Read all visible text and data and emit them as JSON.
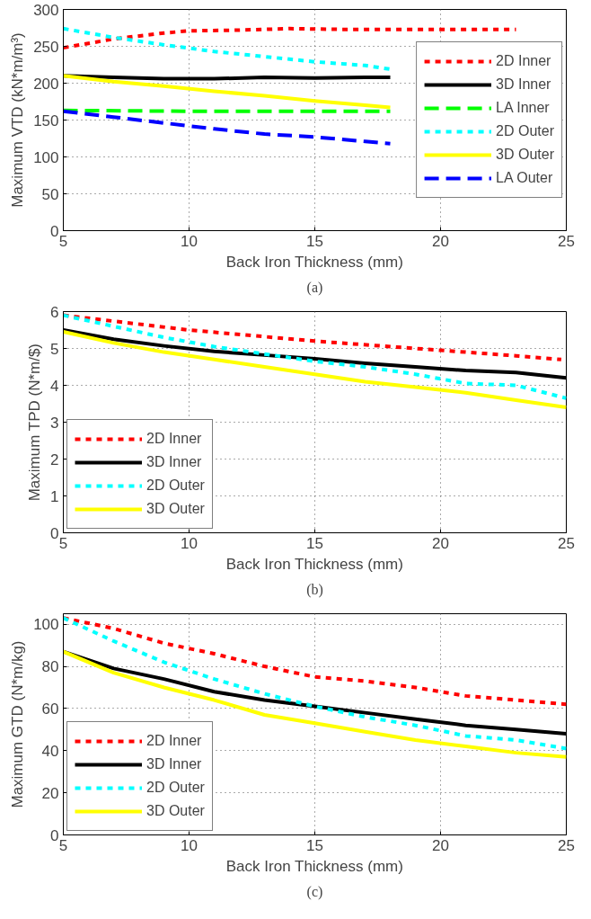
{
  "chart_data": [
    {
      "type": "line",
      "xlabel": "Back Iron Thickness (mm)",
      "ylabel": "Maximum VTD (kN*m/m³)",
      "xlim": [
        5,
        25
      ],
      "ylim": [
        0,
        300
      ],
      "xticks": [
        5,
        10,
        15,
        20,
        25
      ],
      "yticks": [
        0,
        50,
        100,
        150,
        200,
        250,
        300
      ],
      "grid": true,
      "legend": "right",
      "annotations": [
        "(a)"
      ],
      "series": [
        {
          "name": "2D Inner",
          "color": "#ff0000",
          "line_style": "dotted",
          "x": [
            5,
            7,
            9,
            10,
            12,
            14,
            16,
            18,
            20,
            22,
            23
          ],
          "values": [
            248,
            260,
            268,
            271,
            272,
            274,
            273,
            273,
            273,
            273,
            273
          ]
        },
        {
          "name": "3D Inner",
          "color": "#000000",
          "line_style": "solid",
          "x": [
            5,
            7,
            9,
            11,
            13,
            15,
            17,
            18
          ],
          "values": [
            210,
            208,
            206,
            206,
            208,
            207,
            208,
            208
          ]
        },
        {
          "name": "LA Inner",
          "color": "#00ff00",
          "line_style": "dashed",
          "x": [
            5,
            10,
            15,
            18
          ],
          "values": [
            163,
            162,
            162,
            162
          ]
        },
        {
          "name": "2D Outer",
          "color": "#00ffff",
          "line_style": "dotted",
          "x": [
            5,
            7,
            9,
            11,
            13,
            15,
            17,
            18
          ],
          "values": [
            274,
            262,
            252,
            243,
            236,
            229,
            224,
            219
          ]
        },
        {
          "name": "3D Outer",
          "color": "#ffff00",
          "line_style": "solid",
          "x": [
            5,
            7,
            9,
            11,
            13,
            15,
            17,
            18
          ],
          "values": [
            210,
            202,
            196,
            189,
            183,
            176,
            170,
            167
          ]
        },
        {
          "name": "LA Outer",
          "color": "#0000ff",
          "line_style": "dashed",
          "x": [
            5,
            7,
            9,
            11,
            13,
            15,
            17,
            18
          ],
          "values": [
            162,
            154,
            146,
            138,
            131,
            127,
            121,
            118
          ]
        }
      ]
    },
    {
      "type": "line",
      "xlabel": "Back Iron Thickness (mm)",
      "ylabel": "Maximum TPD (N*m/$)",
      "xlim": [
        5,
        25
      ],
      "ylim": [
        0,
        6
      ],
      "xticks": [
        5,
        10,
        15,
        20,
        25
      ],
      "yticks": [
        0,
        1,
        2,
        3,
        4,
        5,
        6
      ],
      "grid": true,
      "legend": "bottom left",
      "annotations": [
        "(b)"
      ],
      "series": [
        {
          "name": "2D Inner",
          "color": "#ff0000",
          "line_style": "dotted",
          "x": [
            5,
            10,
            15,
            20,
            23,
            24.8
          ],
          "values": [
            5.9,
            5.5,
            5.2,
            4.95,
            4.8,
            4.7
          ]
        },
        {
          "name": "3D Inner",
          "color": "#000000",
          "line_style": "solid",
          "x": [
            5,
            7,
            9,
            11,
            13,
            15,
            17,
            19,
            21,
            23,
            25
          ],
          "values": [
            5.5,
            5.25,
            5.07,
            4.92,
            4.82,
            4.72,
            4.6,
            4.5,
            4.4,
            4.35,
            4.2
          ]
        },
        {
          "name": "2D Outer",
          "color": "#00ffff",
          "line_style": "dotted",
          "x": [
            5,
            7,
            9,
            11,
            13,
            15,
            17,
            19,
            21,
            23,
            25
          ],
          "values": [
            5.9,
            5.6,
            5.3,
            5.05,
            4.85,
            4.65,
            4.5,
            4.3,
            4.05,
            4.0,
            3.65
          ]
        },
        {
          "name": "3D Outer",
          "color": "#ffff00",
          "line_style": "solid",
          "x": [
            5,
            7,
            9,
            11,
            13,
            15,
            17,
            19,
            21,
            23,
            25
          ],
          "values": [
            5.45,
            5.15,
            4.9,
            4.7,
            4.5,
            4.3,
            4.1,
            3.95,
            3.8,
            3.6,
            3.4
          ]
        }
      ]
    },
    {
      "type": "line",
      "xlabel": "Back Iron Thickness (mm)",
      "ylabel": "Maximum GTD (N*m/kg)",
      "xlim": [
        5,
        25
      ],
      "ylim": [
        0,
        105
      ],
      "xticks": [
        5,
        10,
        15,
        20,
        25
      ],
      "yticks": [
        0,
        20,
        40,
        60,
        80,
        100
      ],
      "grid": true,
      "legend": "bottom left",
      "annotations": [
        "(c)"
      ],
      "series": [
        {
          "name": "2D Inner",
          "color": "#ff0000",
          "line_style": "dotted",
          "x": [
            5,
            7,
            9,
            11,
            13,
            15,
            17,
            19,
            21,
            23,
            25
          ],
          "values": [
            103,
            98,
            91,
            86,
            80,
            75,
            73,
            70,
            66,
            64,
            62
          ]
        },
        {
          "name": "3D Inner",
          "color": "#000000",
          "line_style": "solid",
          "x": [
            5,
            7,
            9,
            11,
            13,
            15,
            17,
            19,
            21,
            23,
            25
          ],
          "values": [
            87,
            79,
            74,
            68,
            64,
            61,
            58,
            55,
            52,
            50,
            48
          ]
        },
        {
          "name": "2D Outer",
          "color": "#00ffff",
          "line_style": "dotted",
          "x": [
            5,
            7,
            9,
            11,
            13,
            15,
            17,
            19,
            21,
            23,
            25
          ],
          "values": [
            103,
            92,
            82,
            74,
            67,
            61,
            56,
            52,
            47,
            45,
            41
          ]
        },
        {
          "name": "3D Outer",
          "color": "#ffff00",
          "line_style": "solid",
          "x": [
            5,
            7,
            9,
            11,
            13,
            15,
            17,
            19,
            21,
            23,
            25
          ],
          "values": [
            87,
            77,
            70,
            64,
            57,
            53,
            49,
            45,
            42,
            39,
            37
          ]
        }
      ]
    }
  ]
}
